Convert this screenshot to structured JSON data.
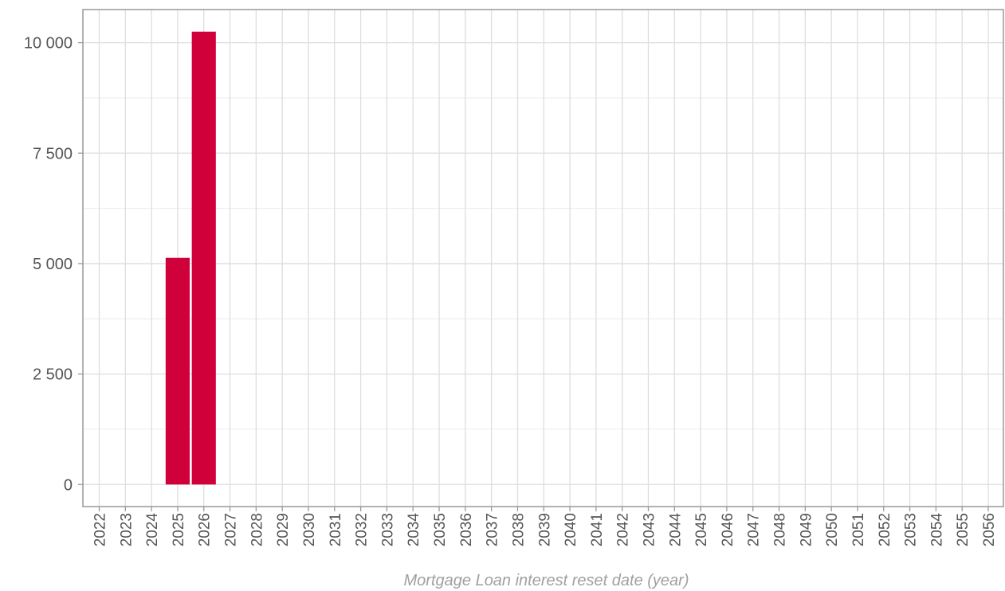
{
  "chart_data": {
    "type": "bar",
    "title": "",
    "xlabel": "Mortgage Loan interest reset date (year)",
    "ylabel": "",
    "categories": [
      "2022",
      "2023",
      "2024",
      "2025",
      "2026",
      "2027",
      "2028",
      "2029",
      "2030",
      "2031",
      "2032",
      "2033",
      "2034",
      "2035",
      "2036",
      "2037",
      "2038",
      "2039",
      "2040",
      "2041",
      "2042",
      "2043",
      "2044",
      "2045",
      "2046",
      "2047",
      "2048",
      "2049",
      "2050",
      "2051",
      "2052",
      "2053",
      "2054",
      "2055",
      "2056"
    ],
    "values": [
      0,
      0,
      0,
      5130,
      10250,
      0,
      0,
      0,
      0,
      0,
      0,
      0,
      0,
      0,
      0,
      0,
      0,
      0,
      0,
      0,
      0,
      0,
      0,
      0,
      0,
      0,
      0,
      0,
      0,
      0,
      0,
      0,
      0,
      0,
      0
    ],
    "ylim": [
      -500,
      10750
    ],
    "yticks": [
      0,
      2500,
      5000,
      7500,
      10000
    ],
    "ytick_labels": [
      "0",
      "2 500",
      "5 000",
      "7 500",
      "10 000"
    ],
    "grid": true,
    "bar_color": "#d0003a"
  }
}
